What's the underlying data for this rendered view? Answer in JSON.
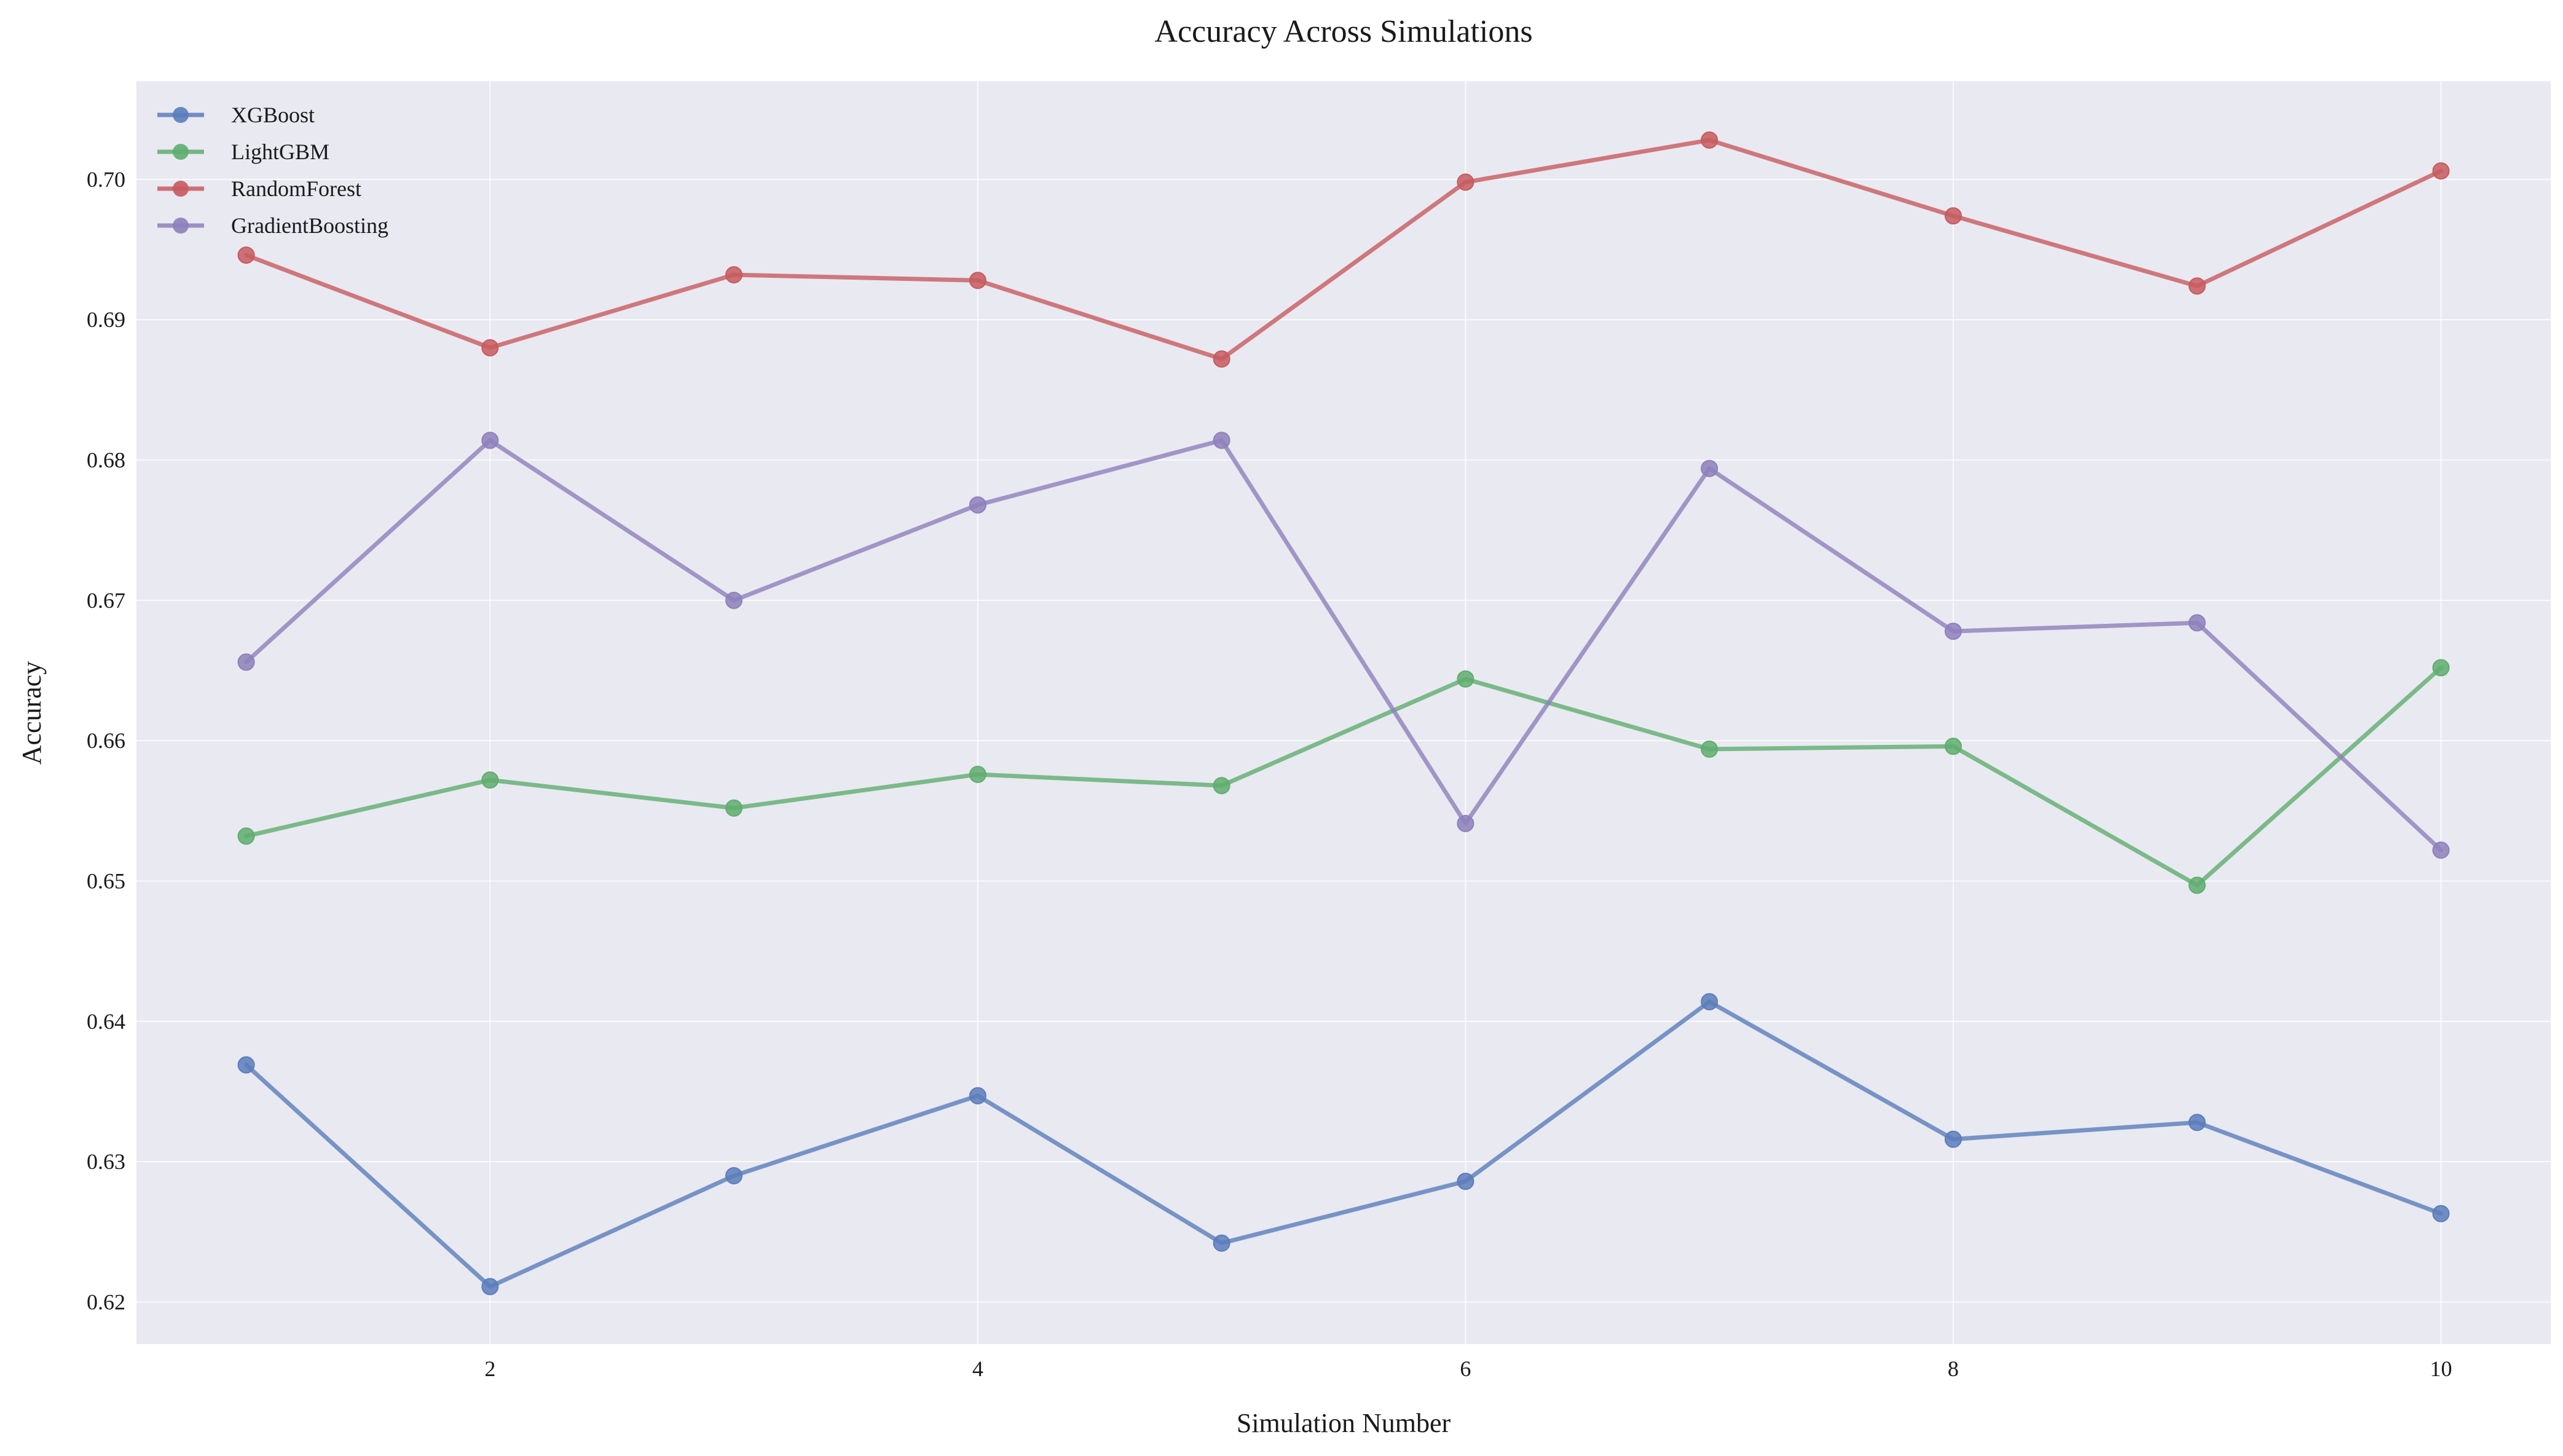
{
  "chart_data": {
    "type": "line",
    "title": "Accuracy Across Simulations",
    "xlabel": "Simulation Number",
    "ylabel": "Accuracy",
    "x": [
      1,
      2,
      3,
      4,
      5,
      6,
      7,
      8,
      9,
      10
    ],
    "xlim": [
      0.55,
      10.45
    ],
    "ylim": [
      0.617,
      0.707
    ],
    "xticks": [
      2,
      4,
      6,
      8,
      10
    ],
    "yticks": [
      0.62,
      0.63,
      0.64,
      0.65,
      0.66,
      0.67,
      0.68,
      0.69,
      0.7
    ],
    "ytick_labels": [
      "0.62",
      "0.63",
      "0.64",
      "0.65",
      "0.66",
      "0.67",
      "0.68",
      "0.69",
      "0.70"
    ],
    "grid": true,
    "legend_position": "top-left",
    "background": "#e9e9f1",
    "series": [
      {
        "name": "XGBoost",
        "color": "#5a7dbb",
        "values": [
          0.6369,
          0.6211,
          0.629,
          0.6347,
          0.6242,
          0.6286,
          0.6414,
          0.6316,
          0.6328,
          0.6263
        ]
      },
      {
        "name": "LightGBM",
        "color": "#5fad6f",
        "values": [
          0.6532,
          0.6572,
          0.6552,
          0.6576,
          0.6568,
          0.6644,
          0.6594,
          0.6596,
          0.6497,
          0.6652
        ]
      },
      {
        "name": "RandomForest",
        "color": "#c75a5f",
        "values": [
          0.6946,
          0.688,
          0.6932,
          0.6928,
          0.6872,
          0.6998,
          0.7028,
          0.6974,
          0.6924,
          0.7006
        ]
      },
      {
        "name": "GradientBoosting",
        "color": "#8e80bb",
        "values": [
          0.6656,
          0.6814,
          0.67,
          0.6768,
          0.6814,
          0.6541,
          0.6794,
          0.6678,
          0.6684,
          0.6522
        ]
      }
    ]
  }
}
